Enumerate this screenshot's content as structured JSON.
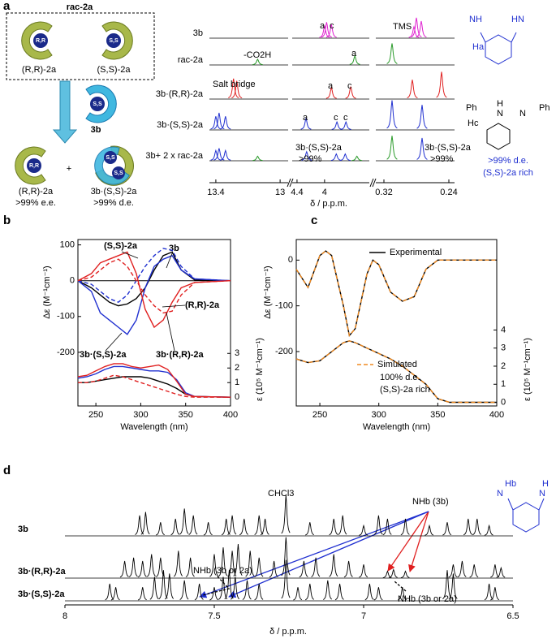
{
  "panel_labels": [
    "a",
    "b",
    "c",
    "d"
  ],
  "scheme": {
    "rac_label": "rac-2a",
    "rr_label": "(R,R)-2a",
    "ss_label": "(S,S)-2a",
    "rr_ball": "R,R",
    "ss_ball": "S,S",
    "host_ball": "S,S",
    "host_label": "3b",
    "product_ball": "R,R",
    "plus": "+",
    "product_label": "(R,R)-2a",
    "product_ee": ">99% e.e.",
    "complex_balls": [
      "S,S",
      "S,S"
    ],
    "complex_label": "3b·(S,S)-2a",
    "complex_de": ">99% d.e."
  },
  "structure_a": {
    "nh": "NH",
    "hn": "HN",
    "ha": "Ha",
    "ph1": "Ph",
    "h": "H",
    "n1": "N",
    "n2": "N",
    "ph2": "Ph",
    "hc": "Hc",
    "de": ">99% d.e.",
    "rich": "(S,S)-2a rich"
  },
  "nmr_a": {
    "xlabel": "δ / p.p.m.",
    "tms_label": "TMS",
    "segments": [
      {
        "xlim": [
          13.44,
          12.95
        ],
        "xticks": [
          13.4,
          13
        ]
      },
      {
        "xlim": [
          4.47,
          3.35
        ],
        "xticks": [
          4.4,
          4
        ]
      },
      {
        "xlim": [
          0.33,
          0.233
        ],
        "xticks": [
          0.32,
          0.24
        ]
      }
    ],
    "rows": [
      {
        "label": "3b",
        "ppm": [
          4.0,
          3.97,
          3.9,
          0.283,
          0.28,
          0.274
        ],
        "heights": [
          0.55,
          0.7,
          0.6,
          0.5,
          0.9,
          0.75
        ],
        "colors": [
          "#e020d0",
          "#e020d0",
          "#e020d0",
          "#e020d0",
          "#e020d0",
          "#e020d0"
        ],
        "annotations": [
          "a",
          "c"
        ]
      },
      {
        "label": "rac-2a",
        "ppm": [
          13.14,
          3.56,
          0.31
        ],
        "heights": [
          0.25,
          0.4,
          0.95
        ],
        "colors": [
          "#2a9a2a",
          "#2a9a2a",
          "#2a9a2a"
        ],
        "annotations": [
          "-CO2H",
          "a"
        ]
      },
      {
        "label": "3b·(R,R)-2a",
        "ppm": [
          13.29,
          13.27,
          3.9,
          3.62,
          0.285,
          0.249
        ],
        "heights": [
          0.9,
          0.8,
          0.5,
          0.55,
          0.85,
          1.2
        ],
        "colors": [
          "#e02020",
          "#e02020",
          "#e02020",
          "#e02020",
          "#e02020",
          "#e02020"
        ],
        "annotations": [
          "Salt bridge",
          "a",
          "c"
        ]
      },
      {
        "label": "3b·(S,S)-2a",
        "ppm": [
          13.4,
          13.38,
          13.34,
          4.27,
          3.82,
          3.69,
          0.31,
          0.273
        ],
        "heights": [
          0.6,
          0.75,
          0.6,
          0.5,
          0.35,
          0.35,
          1.3,
          1.1
        ],
        "colors": [
          "#2030d0",
          "#2030d0",
          "#2030d0",
          "#2030d0",
          "#2030d0",
          "#2030d0",
          "#2030d0",
          "#2030d0"
        ],
        "annotations": [
          "a",
          "c",
          "c"
        ]
      },
      {
        "label": "3b+ 2 x rac-2a",
        "ppm": [
          13.4,
          13.38,
          13.34,
          13.14,
          4.26,
          3.83,
          3.7,
          3.53,
          0.31,
          0.273
        ],
        "heights": [
          0.45,
          0.55,
          0.45,
          0.2,
          0.4,
          0.3,
          0.3,
          0.2,
          1.1,
          1.0
        ],
        "colors": [
          "#2030d0",
          "#2030d0",
          "#2030d0",
          "#2a9a2a",
          "#2030d0",
          "#2030d0",
          "#2030d0",
          "#2a9a2a",
          "#2a9a2a",
          "#2030d0"
        ],
        "annotations": [
          "3b·(S,S)-2a",
          ">99%",
          "3b·(S,S)-2a",
          ">99%"
        ]
      }
    ]
  },
  "chart_data": [
    {
      "type": "line",
      "xlabel": "Wavelength (nm)",
      "ylabel": "Δε (M⁻¹cm⁻¹)",
      "y2label": "ε (10⁵ M⁻¹cm⁻¹)",
      "xlim": [
        230,
        400
      ],
      "xticks": [
        250,
        300,
        350,
        400
      ],
      "ylim": [
        -350,
        115
      ],
      "yticks": [
        100,
        0,
        -100,
        -200
      ],
      "y2lim": [
        -0.6,
        10.8
      ],
      "y2ticks": [
        0,
        1,
        2,
        3
      ],
      "series": [
        {
          "name": "3b",
          "color": "#000000",
          "style": "solid",
          "x": [
            230,
            245,
            255,
            265,
            275,
            285,
            295,
            305,
            315,
            325,
            335,
            345,
            360,
            400
          ],
          "values": [
            0,
            -20,
            -40,
            -60,
            -70,
            -65,
            -50,
            -20,
            30,
            70,
            80,
            30,
            2,
            0
          ]
        },
        {
          "name": "(S,S)-2a",
          "color": "#2030d0",
          "style": "dashed",
          "x": [
            230,
            245,
            255,
            265,
            275,
            285,
            295,
            305,
            315,
            325,
            335,
            345,
            360,
            400
          ],
          "values": [
            0,
            -10,
            -30,
            -50,
            -60,
            -40,
            0,
            40,
            70,
            90,
            85,
            40,
            5,
            0
          ]
        },
        {
          "name": "3b·(S,S)-2a",
          "color": "#2030d0",
          "style": "solid",
          "x": [
            230,
            245,
            255,
            265,
            275,
            285,
            295,
            305,
            315,
            325,
            335,
            345,
            360,
            400
          ],
          "values": [
            0,
            -30,
            -90,
            -110,
            -130,
            -150,
            -110,
            -20,
            40,
            60,
            70,
            30,
            5,
            0
          ]
        },
        {
          "name": "(R,R)-2a",
          "color": "#e02020",
          "style": "dashed",
          "x": [
            230,
            245,
            255,
            265,
            275,
            285,
            295,
            305,
            315,
            325,
            335,
            345,
            360,
            400
          ],
          "values": [
            0,
            10,
            30,
            50,
            60,
            40,
            0,
            -40,
            -70,
            -90,
            -85,
            -40,
            -5,
            0
          ]
        },
        {
          "name": "3b·(R,R)-2a",
          "color": "#e02020",
          "style": "solid",
          "x": [
            230,
            245,
            255,
            265,
            275,
            285,
            295,
            305,
            315,
            325,
            335,
            345,
            360,
            400
          ],
          "values": [
            0,
            20,
            50,
            60,
            70,
            80,
            20,
            -80,
            -130,
            -110,
            -60,
            -20,
            -5,
            0
          ]
        },
        {
          "color": "#000000",
          "style": "solid",
          "axis": "y2",
          "x": [
            230,
            240,
            250,
            260,
            270,
            280,
            290,
            300,
            310,
            320,
            330,
            340,
            350,
            360,
            400
          ],
          "values": [
            1.0,
            1.0,
            1.1,
            1.2,
            1.3,
            1.4,
            1.4,
            1.4,
            1.3,
            1.1,
            0.9,
            0.6,
            0.2,
            0.05,
            0
          ]
        },
        {
          "color": "#2030d0",
          "style": "solid",
          "axis": "y2",
          "x": [
            230,
            240,
            250,
            260,
            270,
            280,
            290,
            300,
            310,
            320,
            330,
            340,
            350,
            360,
            400
          ],
          "values": [
            1.3,
            1.4,
            1.6,
            1.9,
            2.1,
            2.1,
            2.0,
            1.9,
            1.8,
            1.8,
            1.7,
            1.2,
            0.3,
            0.05,
            0
          ]
        },
        {
          "color": "#e02020",
          "style": "solid",
          "axis": "y2",
          "x": [
            230,
            240,
            250,
            260,
            270,
            280,
            290,
            300,
            310,
            320,
            330,
            340,
            350,
            360,
            400
          ],
          "values": [
            1.4,
            1.5,
            1.8,
            2.1,
            2.3,
            2.3,
            2.1,
            2.0,
            2.1,
            2.2,
            1.9,
            1.1,
            0.2,
            0.05,
            0
          ]
        },
        {
          "color": "#e02020",
          "style": "dashed",
          "axis": "y2",
          "x": [
            230,
            240,
            250,
            260,
            270,
            280,
            290,
            300,
            310,
            320,
            330,
            340,
            350,
            360,
            400
          ],
          "values": [
            1.0,
            1.0,
            1.1,
            1.3,
            1.5,
            1.4,
            1.2,
            1.0,
            0.8,
            0.6,
            0.4,
            0.2,
            0.05,
            0,
            0
          ]
        }
      ]
    },
    {
      "type": "line",
      "xlabel": "Wavelength (nm)",
      "ylabel": "Δε (M⁻¹cm⁻¹)",
      "y2label": "ε (10⁵ M⁻¹cm⁻¹)",
      "xlim": [
        230,
        400
      ],
      "xticks": [
        250,
        300,
        350,
        400
      ],
      "ylim": [
        -319,
        45
      ],
      "yticks": [
        0,
        -100,
        -200
      ],
      "y2lim": [
        -0.2,
        9
      ],
      "y2ticks": [
        0,
        1,
        2,
        3,
        4
      ],
      "annotations": [
        "100% d.e.",
        "(S,S)-2a rich"
      ],
      "series": [
        {
          "name": "Experimental",
          "color": "#000000",
          "style": "solid",
          "x": [
            230,
            240,
            250,
            255,
            260,
            270,
            275,
            280,
            290,
            295,
            300,
            310,
            320,
            330,
            340,
            350,
            360,
            400
          ],
          "values": [
            -20,
            -60,
            10,
            20,
            10,
            -100,
            -165,
            -150,
            -30,
            0,
            -10,
            -70,
            -90,
            -80,
            -20,
            0,
            0,
            0
          ]
        },
        {
          "name": "Simulated",
          "color": "#f08a20",
          "style": "dashed",
          "x": [
            230,
            240,
            250,
            255,
            260,
            270,
            275,
            280,
            290,
            295,
            300,
            310,
            320,
            330,
            340,
            350,
            360,
            400
          ],
          "values": [
            -20,
            -60,
            10,
            20,
            10,
            -100,
            -165,
            -150,
            -30,
            0,
            -10,
            -70,
            -90,
            -80,
            -20,
            0,
            0,
            0
          ]
        },
        {
          "color": "#000000",
          "style": "solid",
          "axis": "y2",
          "x": [
            230,
            240,
            250,
            260,
            270,
            275,
            280,
            290,
            300,
            310,
            320,
            330,
            340,
            350,
            360,
            400
          ],
          "values": [
            2.4,
            2.2,
            2.3,
            2.8,
            3.3,
            3.4,
            3.3,
            3.0,
            2.7,
            2.4,
            2.0,
            1.5,
            1.0,
            0.2,
            0,
            0
          ]
        },
        {
          "color": "#f08a20",
          "style": "dashed",
          "axis": "y2",
          "x": [
            230,
            240,
            250,
            260,
            270,
            275,
            280,
            290,
            300,
            310,
            320,
            330,
            340,
            350,
            360,
            400
          ],
          "values": [
            2.4,
            2.2,
            2.3,
            2.8,
            3.3,
            3.4,
            3.3,
            3.0,
            2.7,
            2.4,
            2.0,
            1.5,
            1.0,
            0.2,
            0,
            0
          ]
        }
      ]
    }
  ],
  "nmr_d": {
    "xlim": [
      8,
      6.5
    ],
    "xticks": [
      8,
      7.5,
      7,
      6.5
    ],
    "xlabel": "δ / p.p.m.",
    "annotations": {
      "solvent": "CHCl3",
      "nh_host": "NHb (3b)",
      "nh_mixed": [
        "NHb (3b or 2a)",
        "NHb (3b or 2a)"
      ]
    },
    "structure": {
      "n1": "N",
      "hb": "Hb",
      "n2": "N",
      "h": "H"
    },
    "rows": [
      {
        "label": "3b",
        "ppm": [
          7.75,
          7.73,
          7.68,
          7.63,
          7.6,
          7.57,
          7.52,
          7.46,
          7.44,
          7.4,
          7.35,
          7.33,
          7.26,
          7.18,
          7.1,
          7.07,
          7.0,
          6.95,
          6.92,
          6.86,
          6.78,
          6.72,
          6.65,
          6.62,
          6.58
        ],
        "heights": [
          0.6,
          0.7,
          0.4,
          0.5,
          0.8,
          0.6,
          0.4,
          0.5,
          0.6,
          0.5,
          0.6,
          0.5,
          1.2,
          0.4,
          0.5,
          0.6,
          0.3,
          0.6,
          0.5,
          0.5,
          0.3,
          0.4,
          0.5,
          0.5,
          0.3
        ]
      },
      {
        "label": "3b·(R,R)-2a",
        "ppm": [
          7.8,
          7.77,
          7.74,
          7.71,
          7.68,
          7.62,
          7.58,
          7.5,
          7.47,
          7.44,
          7.42,
          7.38,
          7.35,
          7.3,
          7.26,
          7.2,
          7.16,
          7.1,
          7.05,
          7.0,
          6.92,
          6.9,
          6.86,
          6.7,
          6.67,
          6.63,
          6.56,
          6.54
        ],
        "heights": [
          0.5,
          0.6,
          0.5,
          0.7,
          0.6,
          0.8,
          0.6,
          0.7,
          0.9,
          0.8,
          1.0,
          0.8,
          0.6,
          0.5,
          1.2,
          0.5,
          0.6,
          0.7,
          0.5,
          0.4,
          0.2,
          0.25,
          0.2,
          0.4,
          0.5,
          0.4,
          0.4,
          0.3
        ]
      },
      {
        "label": "3b·(S,S)-2a",
        "ppm": [
          7.85,
          7.83,
          7.74,
          7.7,
          7.67,
          7.65,
          7.6,
          7.55,
          7.5,
          7.47,
          7.45,
          7.43,
          7.39,
          7.35,
          7.26,
          7.22,
          7.18,
          7.12,
          7.08,
          6.98,
          6.95,
          6.87,
          6.72,
          6.7,
          6.58,
          6.56
        ],
        "heights": [
          0.5,
          0.4,
          0.4,
          0.7,
          0.9,
          0.8,
          0.6,
          0.5,
          0.4,
          0.7,
          0.9,
          0.7,
          0.6,
          0.5,
          1.2,
          0.4,
          0.5,
          0.6,
          0.5,
          0.5,
          0.4,
          0.4,
          0.9,
          0.8,
          0.5,
          0.4
        ]
      }
    ]
  }
}
